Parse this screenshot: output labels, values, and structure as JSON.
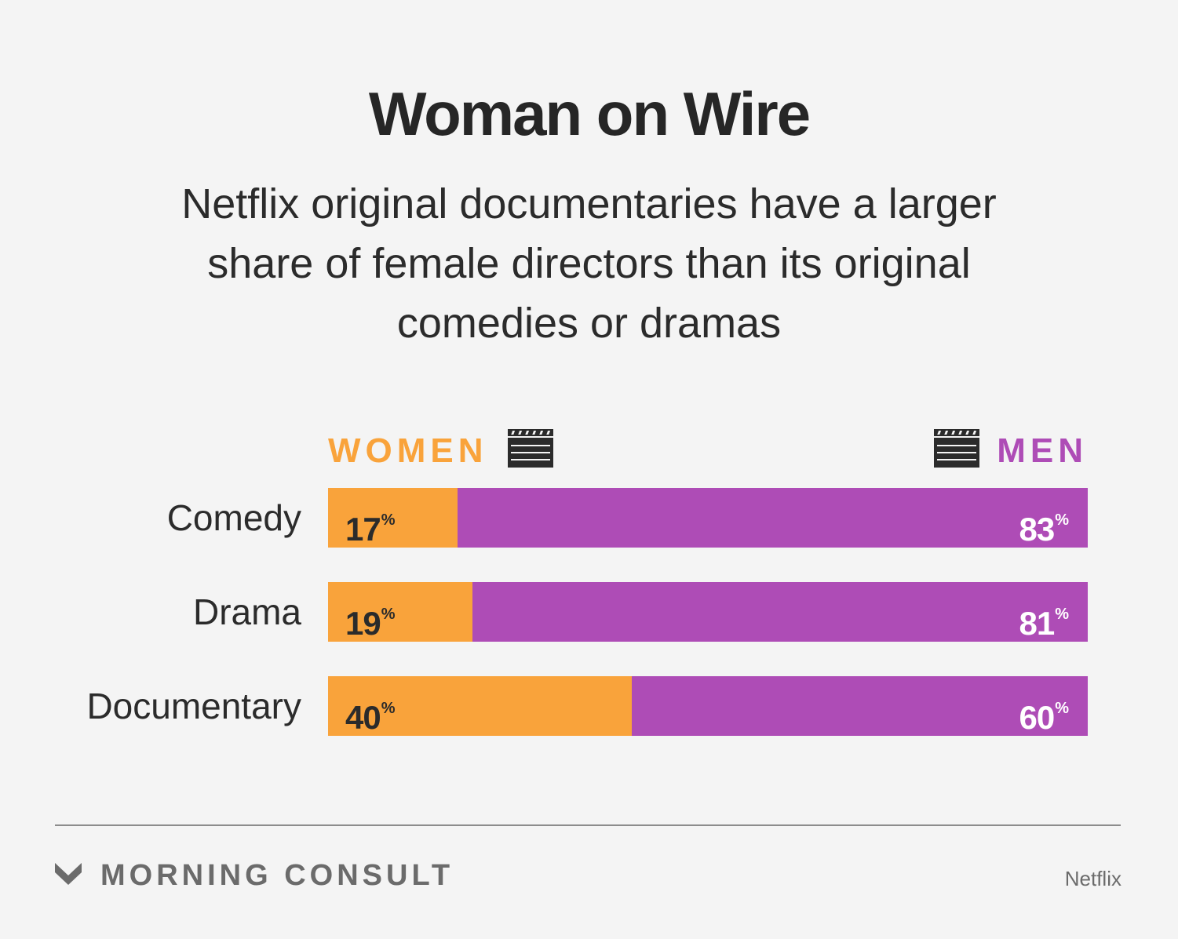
{
  "title": "Woman on Wire",
  "subtitle": "Netflix original documentaries have a larger share of female directors than its original comedies or dramas",
  "colors": {
    "women": "#f9a33b",
    "men": "#ae4cb6"
  },
  "chart_data": {
    "type": "bar",
    "stacked": true,
    "orientation": "horizontal",
    "categories": [
      "Comedy",
      "Drama",
      "Documentary"
    ],
    "series": [
      {
        "name": "WOMEN",
        "values": [
          17,
          19,
          40
        ]
      },
      {
        "name": "MEN",
        "values": [
          83,
          81,
          60
        ]
      }
    ],
    "unit": "%",
    "xlim": [
      0,
      100
    ],
    "grid": false,
    "legend_placement": "top"
  },
  "legend_icons": {
    "women": "clapperboard-icon",
    "men": "clapperboard-icon"
  },
  "footer": {
    "brand": "MORNING CONSULT",
    "brand_icon": "morning-consult-logo",
    "source": "Netflix"
  }
}
